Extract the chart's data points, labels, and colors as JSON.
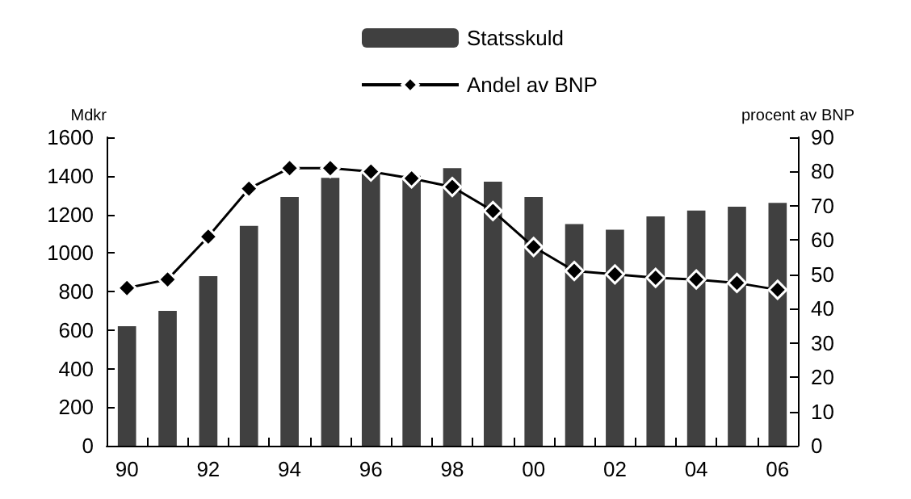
{
  "chart_data": {
    "type": "bar",
    "ylabel": "Mdkr",
    "y2label": "procent av BNP",
    "categories": [
      "90",
      null,
      "92",
      null,
      "94",
      null,
      "96",
      null,
      "98",
      null,
      "00",
      null,
      "02",
      null,
      "04",
      null,
      "06"
    ],
    "series": [
      {
        "name": "Statsskuld",
        "color": "#404040",
        "values": [
          620,
          700,
          880,
          1140,
          1290,
          1390,
          1410,
          1400,
          1440,
          1370,
          1290,
          1150,
          1120,
          1190,
          1220,
          1240,
          1260
        ]
      },
      {
        "name": "Andel av BNP",
        "type": "line",
        "color": "#000000",
        "axis": "y2",
        "marker": "diamond",
        "values": [
          46,
          48.5,
          61,
          75,
          81,
          81,
          80,
          78,
          75.5,
          68.5,
          58,
          51,
          50,
          49,
          48.5,
          47.5,
          45.5
        ]
      }
    ],
    "ylim": [
      0,
      1600
    ],
    "yticks": [
      0,
      200,
      400,
      600,
      800,
      1000,
      1200,
      1400,
      1600
    ],
    "y2lim": [
      0,
      90
    ],
    "y2ticks": [
      0,
      10,
      20,
      30,
      40,
      50,
      60,
      70,
      80,
      90
    ],
    "grid": false,
    "legend": "top"
  }
}
